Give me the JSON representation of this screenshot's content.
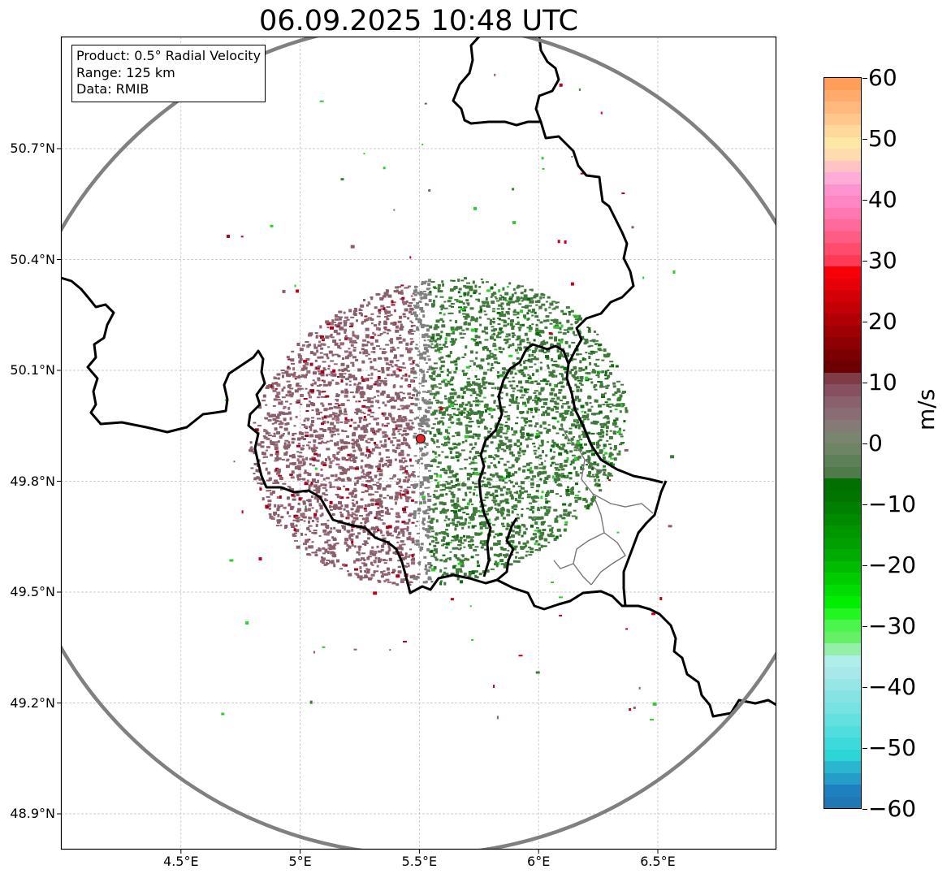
{
  "title": "06.09.2025 10:48 UTC",
  "info_box": {
    "product": "Product: 0.5° Radial Velocity",
    "range": "Range: 125 km",
    "source": "Data: RMIB"
  },
  "map": {
    "lon_range": [
      4.0,
      7.0
    ],
    "lat_range": [
      48.8,
      51.0
    ],
    "lat_ticks": [
      {
        "value": 50.7,
        "label": "50.7°N"
      },
      {
        "value": 50.4,
        "label": "50.4°N"
      },
      {
        "value": 50.1,
        "label": "50.1°N"
      },
      {
        "value": 49.8,
        "label": "49.8°N"
      },
      {
        "value": 49.5,
        "label": "49.5°N"
      },
      {
        "value": 49.2,
        "label": "49.2°N"
      },
      {
        "value": 48.9,
        "label": "48.9°N"
      }
    ],
    "lon_ticks": [
      {
        "value": 4.5,
        "label": "4.5°E"
      },
      {
        "value": 5.0,
        "label": "5°E"
      },
      {
        "value": 5.5,
        "label": "5.5°E"
      },
      {
        "value": 6.0,
        "label": "6°E"
      },
      {
        "value": 6.5,
        "label": "6.5°E"
      }
    ],
    "radar_site": {
      "lon": 5.505,
      "lat": 49.915,
      "color": "#e8262a"
    },
    "range_ring_color": "#808080",
    "border_color": "#000000",
    "gridlines": true
  },
  "colorbar": {
    "unit": "m/s",
    "min": -60,
    "max": 60,
    "tick_labels": [
      {
        "value": 60,
        "label": "60"
      },
      {
        "value": 50,
        "label": "50"
      },
      {
        "value": 40,
        "label": "40"
      },
      {
        "value": 30,
        "label": "30"
      },
      {
        "value": 20,
        "label": "20"
      },
      {
        "value": 10,
        "label": "10"
      },
      {
        "value": 0,
        "label": "0"
      },
      {
        "value": -10,
        "label": "−10"
      },
      {
        "value": -20,
        "label": "−20"
      },
      {
        "value": -30,
        "label": "−30"
      },
      {
        "value": -40,
        "label": "−40"
      },
      {
        "value": -50,
        "label": "−50"
      },
      {
        "value": -60,
        "label": "−60"
      }
    ],
    "stops_top_to_bottom": [
      "#ff9e59",
      "#ffab6b",
      "#ffb97d",
      "#ffc78c",
      "#ffd89b",
      "#ffe8a6",
      "#ffdcb0",
      "#ffc3c3",
      "#ffadd6",
      "#ff93d0",
      "#ff85c4",
      "#ff78b0",
      "#ff6a9a",
      "#ff5c84",
      "#ff4c6c",
      "#ff3a56",
      "#f70008",
      "#e60008",
      "#d40007",
      "#c20006",
      "#b00005",
      "#9e0004",
      "#8c0003",
      "#7a0002",
      "#6a0001",
      "#7f3b46",
      "#865060",
      "#89606e",
      "#8a6c74",
      "#857a75",
      "#7a8570",
      "#6d8565",
      "#5e8058",
      "#4f7a4a",
      "#007000",
      "#007500",
      "#008000",
      "#008a00",
      "#009600",
      "#00a000",
      "#00ac00",
      "#00bb00",
      "#00cc00",
      "#00dd00",
      "#00ee00",
      "#22f522",
      "#4cf54c",
      "#66f066",
      "#94f0a8",
      "#b0eeec",
      "#a8e8ea",
      "#96e6e6",
      "#86e3e3",
      "#76e2e2",
      "#63e0e0",
      "#4fdddd",
      "#3cdada",
      "#2cd6d6",
      "#2ab6cf",
      "#249ec8",
      "#1f80c0",
      "#1f77b4"
    ]
  },
  "palette": {
    "approaching": "#3f7a3a",
    "approaching_strong": "#0b6a0b",
    "receding": "#8a5e6b",
    "receding_strong": "#a8001c",
    "near_zero": "#7f7f7f"
  }
}
